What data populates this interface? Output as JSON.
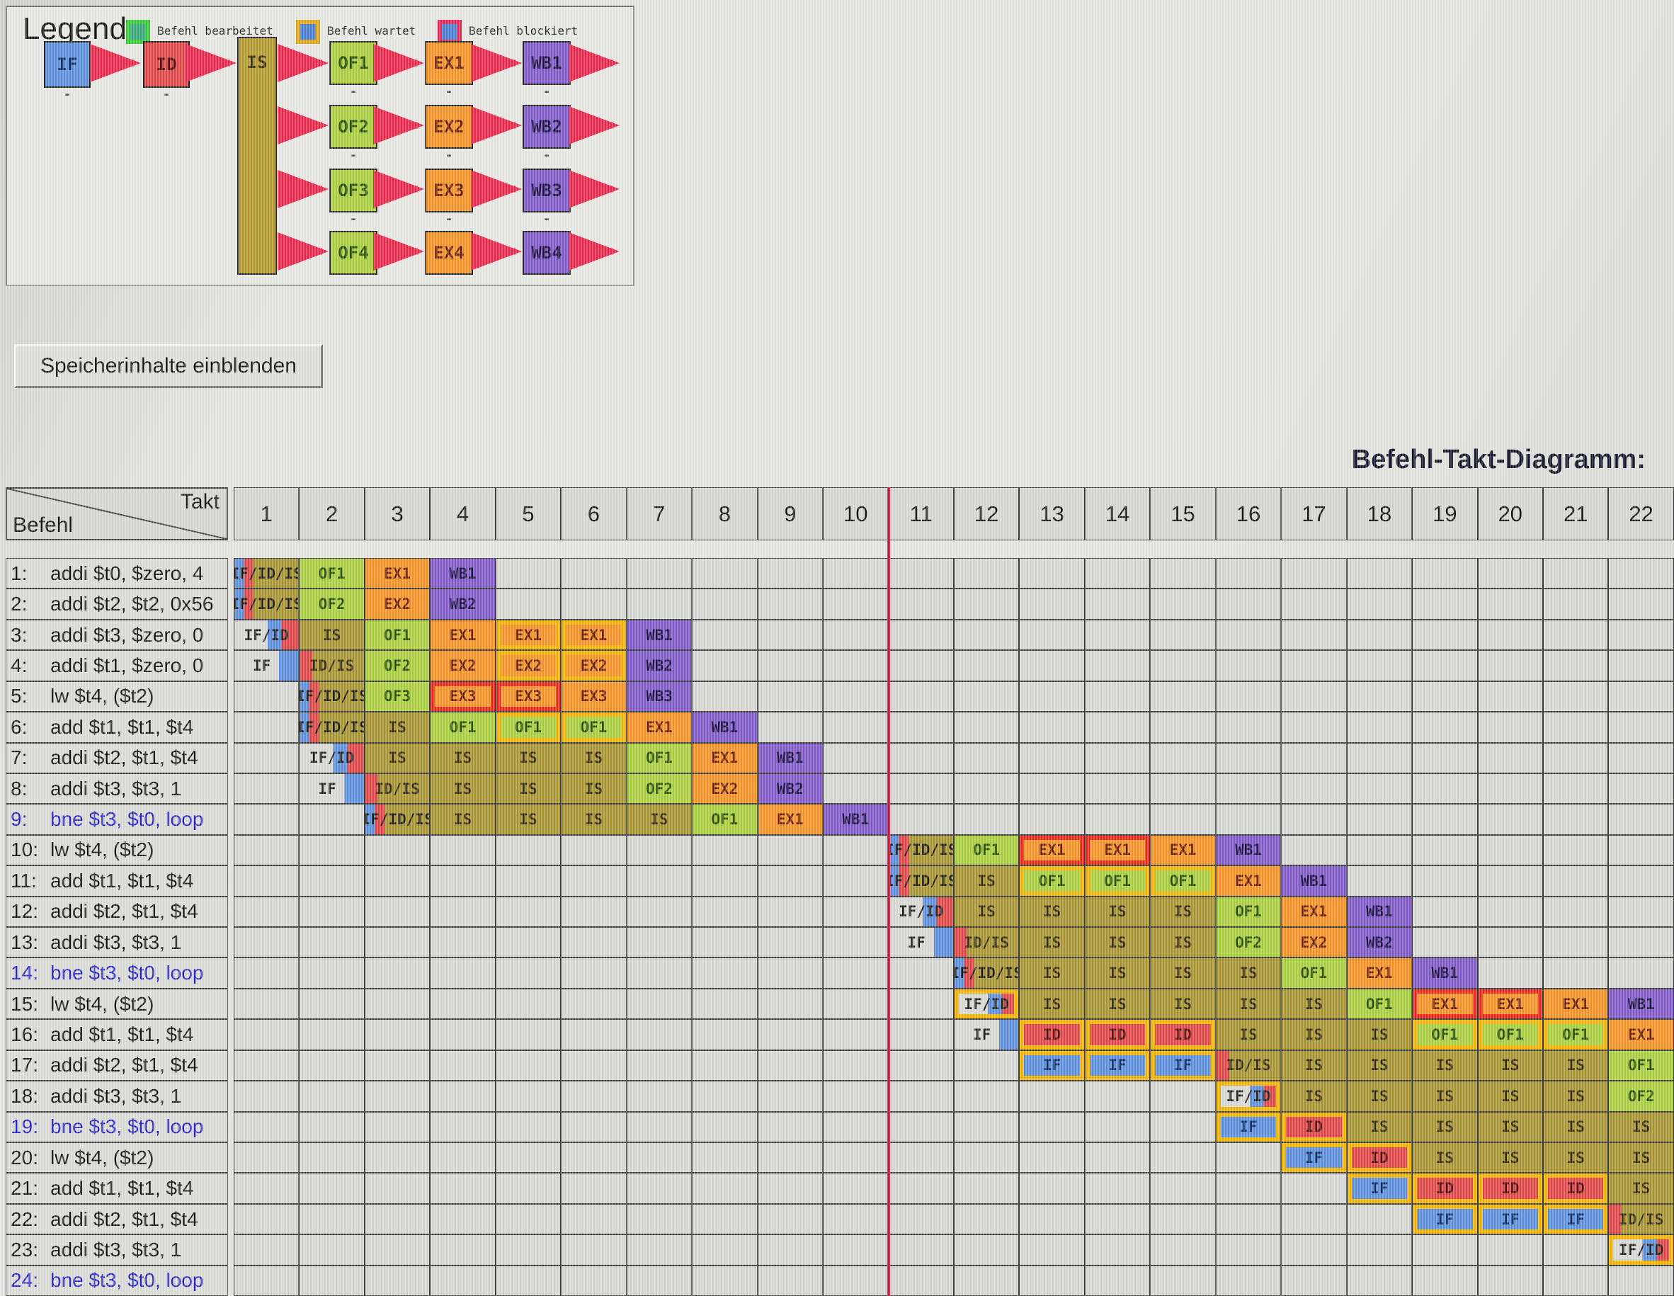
{
  "legend": {
    "title": "Legend",
    "items": [
      {
        "label": "Befehl bearbeitet",
        "border_color": "#33cc33"
      },
      {
        "label": "Befehl wartet",
        "border_color": "#e0a818"
      },
      {
        "label": "Befehl blockiert",
        "border_color": "#e82858"
      }
    ],
    "pipeline": {
      "if": "IF",
      "id": "ID",
      "is": "IS",
      "of": [
        "OF1",
        "OF2",
        "OF3",
        "OF4"
      ],
      "ex": [
        "EX1",
        "EX2",
        "EX3",
        "EX4"
      ],
      "wb": [
        "WB1",
        "WB2",
        "WB3",
        "WB4"
      ]
    },
    "arrow_color": "#e8274a"
  },
  "button_label": "Speicherinhalte einblenden",
  "diagram_title": "Befehl-Takt-Diagramm:",
  "table": {
    "befehl_header": "Befehl",
    "takt_header": "Takt",
    "cycles": [
      1,
      2,
      3,
      4,
      5,
      6,
      7,
      8,
      9,
      10,
      11,
      12,
      13,
      14,
      15,
      16,
      17,
      18,
      19,
      20,
      21,
      22
    ],
    "red_line_after_cycle": 10,
    "status_colors": {
      "wait_border": "#f2b303",
      "blocked_border": "#e8281a"
    },
    "rows": [
      {
        "n": "1:",
        "label": "addi $t0, $zero, 4",
        "blue": false,
        "cells": [
          {
            "c": 1,
            "t": "IF/ID/IS",
            "y": "ifidis"
          },
          {
            "c": 2,
            "t": "OF1",
            "y": "of"
          },
          {
            "c": 3,
            "t": "EX1",
            "y": "ex"
          },
          {
            "c": 4,
            "t": "WB1",
            "y": "wb"
          }
        ]
      },
      {
        "n": "2:",
        "label": "addi $t2, $t2, 0x56",
        "blue": false,
        "cells": [
          {
            "c": 1,
            "t": "IF/ID/IS",
            "y": "ifidis"
          },
          {
            "c": 2,
            "t": "OF2",
            "y": "of"
          },
          {
            "c": 3,
            "t": "EX2",
            "y": "ex"
          },
          {
            "c": 4,
            "t": "WB2",
            "y": "wb"
          }
        ]
      },
      {
        "n": "3:",
        "label": "addi $t3, $zero, 0",
        "blue": false,
        "cells": [
          {
            "c": 1,
            "t": "IF/ID",
            "y": "ifid"
          },
          {
            "c": 2,
            "t": "IS",
            "y": "is"
          },
          {
            "c": 3,
            "t": "OF1",
            "y": "of"
          },
          {
            "c": 4,
            "t": "EX1",
            "y": "ex"
          },
          {
            "c": 5,
            "t": "EX1",
            "y": "ex",
            "b": "w"
          },
          {
            "c": 6,
            "t": "EX1",
            "y": "ex",
            "b": "w"
          },
          {
            "c": 7,
            "t": "WB1",
            "y": "wb"
          }
        ]
      },
      {
        "n": "4:",
        "label": "addi $t1, $zero, 0",
        "blue": false,
        "cells": [
          {
            "c": 1,
            "t": "IF",
            "y": "ifp"
          },
          {
            "c": 2,
            "t": "ID/IS",
            "y": "idis"
          },
          {
            "c": 3,
            "t": "OF2",
            "y": "of"
          },
          {
            "c": 4,
            "t": "EX2",
            "y": "ex"
          },
          {
            "c": 5,
            "t": "EX2",
            "y": "ex",
            "b": "w"
          },
          {
            "c": 6,
            "t": "EX2",
            "y": "ex",
            "b": "w"
          },
          {
            "c": 7,
            "t": "WB2",
            "y": "wb"
          }
        ]
      },
      {
        "n": "5:",
        "label": "lw $t4, ($t2)",
        "blue": false,
        "cells": [
          {
            "c": 2,
            "t": "IF/ID/IS",
            "y": "ifidis"
          },
          {
            "c": 3,
            "t": "OF3",
            "y": "of"
          },
          {
            "c": 4,
            "t": "EX3",
            "y": "ex",
            "b": "x"
          },
          {
            "c": 5,
            "t": "EX3",
            "y": "ex",
            "b": "x"
          },
          {
            "c": 6,
            "t": "EX3",
            "y": "ex"
          },
          {
            "c": 7,
            "t": "WB3",
            "y": "wb"
          }
        ]
      },
      {
        "n": "6:",
        "label": "add $t1, $t1, $t4",
        "blue": false,
        "cells": [
          {
            "c": 2,
            "t": "IF/ID/IS",
            "y": "ifidis"
          },
          {
            "c": 3,
            "t": "IS",
            "y": "is"
          },
          {
            "c": 4,
            "t": "OF1",
            "y": "of"
          },
          {
            "c": 5,
            "t": "OF1",
            "y": "of",
            "b": "w"
          },
          {
            "c": 6,
            "t": "OF1",
            "y": "of",
            "b": "w"
          },
          {
            "c": 7,
            "t": "EX1",
            "y": "ex"
          },
          {
            "c": 8,
            "t": "WB1",
            "y": "wb"
          }
        ]
      },
      {
        "n": "7:",
        "label": "addi $t2, $t1, $t4",
        "blue": false,
        "cells": [
          {
            "c": 2,
            "t": "IF/ID",
            "y": "ifid"
          },
          {
            "c": 3,
            "t": "IS",
            "y": "is"
          },
          {
            "c": 4,
            "t": "IS",
            "y": "is"
          },
          {
            "c": 5,
            "t": "IS",
            "y": "is"
          },
          {
            "c": 6,
            "t": "IS",
            "y": "is"
          },
          {
            "c": 7,
            "t": "OF1",
            "y": "of"
          },
          {
            "c": 8,
            "t": "EX1",
            "y": "ex"
          },
          {
            "c": 9,
            "t": "WB1",
            "y": "wb"
          }
        ]
      },
      {
        "n": "8:",
        "label": "addi $t3, $t3, 1",
        "blue": false,
        "cells": [
          {
            "c": 2,
            "t": "IF",
            "y": "ifp"
          },
          {
            "c": 3,
            "t": "ID/IS",
            "y": "idis"
          },
          {
            "c": 4,
            "t": "IS",
            "y": "is"
          },
          {
            "c": 5,
            "t": "IS",
            "y": "is"
          },
          {
            "c": 6,
            "t": "IS",
            "y": "is"
          },
          {
            "c": 7,
            "t": "OF2",
            "y": "of"
          },
          {
            "c": 8,
            "t": "EX2",
            "y": "ex"
          },
          {
            "c": 9,
            "t": "WB2",
            "y": "wb"
          }
        ]
      },
      {
        "n": "9:",
        "label": "bne $t3, $t0, loop",
        "blue": true,
        "cells": [
          {
            "c": 3,
            "t": "IF/ID/IS",
            "y": "ifidis"
          },
          {
            "c": 4,
            "t": "IS",
            "y": "is"
          },
          {
            "c": 5,
            "t": "IS",
            "y": "is"
          },
          {
            "c": 6,
            "t": "IS",
            "y": "is"
          },
          {
            "c": 7,
            "t": "IS",
            "y": "is"
          },
          {
            "c": 8,
            "t": "OF1",
            "y": "of"
          },
          {
            "c": 9,
            "t": "EX1",
            "y": "ex"
          },
          {
            "c": 10,
            "t": "WB1",
            "y": "wb"
          }
        ]
      },
      {
        "n": "10:",
        "label": "lw $t4, ($t2)",
        "blue": false,
        "cells": [
          {
            "c": 11,
            "t": "IF/ID/IS",
            "y": "ifidis"
          },
          {
            "c": 12,
            "t": "OF1",
            "y": "of"
          },
          {
            "c": 13,
            "t": "EX1",
            "y": "ex",
            "b": "x"
          },
          {
            "c": 14,
            "t": "EX1",
            "y": "ex",
            "b": "x"
          },
          {
            "c": 15,
            "t": "EX1",
            "y": "ex"
          },
          {
            "c": 16,
            "t": "WB1",
            "y": "wb"
          }
        ]
      },
      {
        "n": "11:",
        "label": "add $t1, $t1, $t4",
        "blue": false,
        "cells": [
          {
            "c": 11,
            "t": "IF/ID/IS",
            "y": "ifidis"
          },
          {
            "c": 12,
            "t": "IS",
            "y": "is"
          },
          {
            "c": 13,
            "t": "OF1",
            "y": "of",
            "b": "w"
          },
          {
            "c": 14,
            "t": "OF1",
            "y": "of",
            "b": "w"
          },
          {
            "c": 15,
            "t": "OF1",
            "y": "of",
            "b": "w"
          },
          {
            "c": 16,
            "t": "EX1",
            "y": "ex"
          },
          {
            "c": 17,
            "t": "WB1",
            "y": "wb"
          }
        ]
      },
      {
        "n": "12:",
        "label": "addi $t2, $t1, $t4",
        "blue": false,
        "cells": [
          {
            "c": 11,
            "t": "IF/ID",
            "y": "ifid"
          },
          {
            "c": 12,
            "t": "IS",
            "y": "is"
          },
          {
            "c": 13,
            "t": "IS",
            "y": "is"
          },
          {
            "c": 14,
            "t": "IS",
            "y": "is"
          },
          {
            "c": 15,
            "t": "IS",
            "y": "is"
          },
          {
            "c": 16,
            "t": "OF1",
            "y": "of"
          },
          {
            "c": 17,
            "t": "EX1",
            "y": "ex"
          },
          {
            "c": 18,
            "t": "WB1",
            "y": "wb"
          }
        ]
      },
      {
        "n": "13:",
        "label": "addi $t3, $t3, 1",
        "blue": false,
        "cells": [
          {
            "c": 11,
            "t": "IF",
            "y": "ifp"
          },
          {
            "c": 12,
            "t": "ID/IS",
            "y": "idis"
          },
          {
            "c": 13,
            "t": "IS",
            "y": "is"
          },
          {
            "c": 14,
            "t": "IS",
            "y": "is"
          },
          {
            "c": 15,
            "t": "IS",
            "y": "is"
          },
          {
            "c": 16,
            "t": "OF2",
            "y": "of"
          },
          {
            "c": 17,
            "t": "EX2",
            "y": "ex"
          },
          {
            "c": 18,
            "t": "WB2",
            "y": "wb"
          }
        ]
      },
      {
        "n": "14:",
        "label": "bne $t3, $t0, loop",
        "blue": true,
        "cells": [
          {
            "c": 12,
            "t": "IF/ID/IS",
            "y": "ifidis"
          },
          {
            "c": 13,
            "t": "IS",
            "y": "is"
          },
          {
            "c": 14,
            "t": "IS",
            "y": "is"
          },
          {
            "c": 15,
            "t": "IS",
            "y": "is"
          },
          {
            "c": 16,
            "t": "IS",
            "y": "is"
          },
          {
            "c": 17,
            "t": "OF1",
            "y": "of"
          },
          {
            "c": 18,
            "t": "EX1",
            "y": "ex"
          },
          {
            "c": 19,
            "t": "WB1",
            "y": "wb"
          }
        ]
      },
      {
        "n": "15:",
        "label": "lw $t4, ($t2)",
        "blue": false,
        "cells": [
          {
            "c": 12,
            "t": "IF/ID",
            "y": "ifid",
            "b": "w"
          },
          {
            "c": 13,
            "t": "IS",
            "y": "is"
          },
          {
            "c": 14,
            "t": "IS",
            "y": "is"
          },
          {
            "c": 15,
            "t": "IS",
            "y": "is"
          },
          {
            "c": 16,
            "t": "IS",
            "y": "is"
          },
          {
            "c": 17,
            "t": "IS",
            "y": "is"
          },
          {
            "c": 18,
            "t": "OF1",
            "y": "of"
          },
          {
            "c": 19,
            "t": "EX1",
            "y": "ex",
            "b": "x"
          },
          {
            "c": 20,
            "t": "EX1",
            "y": "ex",
            "b": "x"
          },
          {
            "c": 21,
            "t": "EX1",
            "y": "ex"
          },
          {
            "c": 22,
            "t": "WB1",
            "y": "wb"
          }
        ]
      },
      {
        "n": "16:",
        "label": "add $t1, $t1, $t4",
        "blue": false,
        "cells": [
          {
            "c": 12,
            "t": "IF",
            "y": "ifp"
          },
          {
            "c": 13,
            "t": "ID",
            "y": "id",
            "b": "w"
          },
          {
            "c": 14,
            "t": "ID",
            "y": "id",
            "b": "w"
          },
          {
            "c": 15,
            "t": "ID",
            "y": "id",
            "b": "w"
          },
          {
            "c": 16,
            "t": "IS",
            "y": "is"
          },
          {
            "c": 17,
            "t": "IS",
            "y": "is"
          },
          {
            "c": 18,
            "t": "IS",
            "y": "is"
          },
          {
            "c": 19,
            "t": "OF1",
            "y": "of",
            "b": "w"
          },
          {
            "c": 20,
            "t": "OF1",
            "y": "of",
            "b": "w"
          },
          {
            "c": 21,
            "t": "OF1",
            "y": "of",
            "b": "w"
          },
          {
            "c": 22,
            "t": "EX1",
            "y": "ex"
          }
        ]
      },
      {
        "n": "17:",
        "label": "addi $t2, $t1, $t4",
        "blue": false,
        "cells": [
          {
            "c": 13,
            "t": "IF",
            "y": "if",
            "b": "w"
          },
          {
            "c": 14,
            "t": "IF",
            "y": "if",
            "b": "w"
          },
          {
            "c": 15,
            "t": "IF",
            "y": "if",
            "b": "w"
          },
          {
            "c": 16,
            "t": "ID/IS",
            "y": "idis"
          },
          {
            "c": 17,
            "t": "IS",
            "y": "is"
          },
          {
            "c": 18,
            "t": "IS",
            "y": "is"
          },
          {
            "c": 19,
            "t": "IS",
            "y": "is"
          },
          {
            "c": 20,
            "t": "IS",
            "y": "is"
          },
          {
            "c": 21,
            "t": "IS",
            "y": "is"
          },
          {
            "c": 22,
            "t": "OF1",
            "y": "of"
          }
        ]
      },
      {
        "n": "18:",
        "label": "addi $t3, $t3, 1",
        "blue": false,
        "cells": [
          {
            "c": 16,
            "t": "IF/ID",
            "y": "ifid",
            "b": "w"
          },
          {
            "c": 17,
            "t": "IS",
            "y": "is"
          },
          {
            "c": 18,
            "t": "IS",
            "y": "is"
          },
          {
            "c": 19,
            "t": "IS",
            "y": "is"
          },
          {
            "c": 20,
            "t": "IS",
            "y": "is"
          },
          {
            "c": 21,
            "t": "IS",
            "y": "is"
          },
          {
            "c": 22,
            "t": "OF2",
            "y": "of"
          }
        ]
      },
      {
        "n": "19:",
        "label": "bne $t3, $t0, loop",
        "blue": true,
        "cells": [
          {
            "c": 16,
            "t": "IF",
            "y": "if",
            "b": "w"
          },
          {
            "c": 17,
            "t": "ID",
            "y": "id",
            "b": "w"
          },
          {
            "c": 18,
            "t": "IS",
            "y": "is"
          },
          {
            "c": 19,
            "t": "IS",
            "y": "is"
          },
          {
            "c": 20,
            "t": "IS",
            "y": "is"
          },
          {
            "c": 21,
            "t": "IS",
            "y": "is"
          },
          {
            "c": 22,
            "t": "IS",
            "y": "is"
          }
        ]
      },
      {
        "n": "20:",
        "label": "lw $t4, ($t2)",
        "blue": false,
        "cells": [
          {
            "c": 17,
            "t": "IF",
            "y": "if",
            "b": "w"
          },
          {
            "c": 18,
            "t": "ID",
            "y": "id",
            "b": "w"
          },
          {
            "c": 19,
            "t": "IS",
            "y": "is"
          },
          {
            "c": 20,
            "t": "IS",
            "y": "is"
          },
          {
            "c": 21,
            "t": "IS",
            "y": "is"
          },
          {
            "c": 22,
            "t": "IS",
            "y": "is"
          }
        ]
      },
      {
        "n": "21:",
        "label": "add $t1, $t1, $t4",
        "blue": false,
        "cells": [
          {
            "c": 18,
            "t": "IF",
            "y": "if",
            "b": "w"
          },
          {
            "c": 19,
            "t": "ID",
            "y": "id",
            "b": "w"
          },
          {
            "c": 20,
            "t": "ID",
            "y": "id",
            "b": "w"
          },
          {
            "c": 21,
            "t": "ID",
            "y": "id",
            "b": "w"
          },
          {
            "c": 22,
            "t": "IS",
            "y": "is"
          }
        ]
      },
      {
        "n": "22:",
        "label": "addi $t2, $t1, $t4",
        "blue": false,
        "cells": [
          {
            "c": 19,
            "t": "IF",
            "y": "if",
            "b": "w"
          },
          {
            "c": 20,
            "t": "IF",
            "y": "if",
            "b": "w"
          },
          {
            "c": 21,
            "t": "IF",
            "y": "if",
            "b": "w"
          },
          {
            "c": 22,
            "t": "ID/IS",
            "y": "idis"
          }
        ]
      },
      {
        "n": "23:",
        "label": "addi $t3, $t3, 1",
        "blue": false,
        "cells": [
          {
            "c": 22,
            "t": "IF/ID",
            "y": "ifid",
            "b": "w"
          }
        ]
      },
      {
        "n": "24:",
        "label": "bne $t3, $t0, loop",
        "blue": true,
        "cells": []
      }
    ]
  }
}
